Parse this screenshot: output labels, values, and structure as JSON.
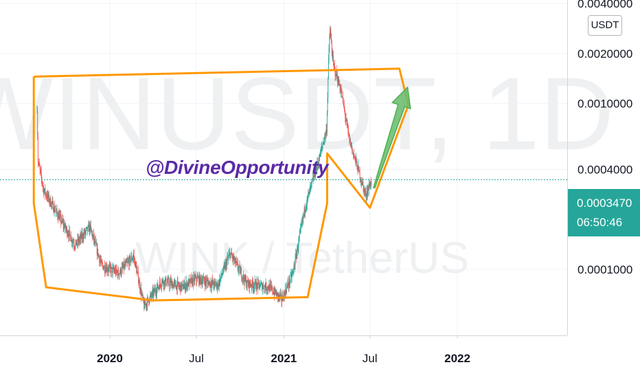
{
  "chart_data": {
    "type": "candlestick",
    "symbol_watermark": "WINUSDT, 1D",
    "pair_watermark": "WINK / TetherUS",
    "author_handle": "@DivineOpportunity",
    "y_scale": "log",
    "y_unit": "USDT",
    "y_range": [
      4e-05,
      0.0042
    ],
    "y_ticks": [
      {
        "label": "0.0040000",
        "value": 0.004
      },
      {
        "label": "0.0020000",
        "value": 0.002
      },
      {
        "label": "0.0010000",
        "value": 0.001
      },
      {
        "label": "0.0004000",
        "value": 0.0004
      },
      {
        "label": "0.0001000",
        "value": 0.0001
      }
    ],
    "x_ticks": [
      {
        "label": "2020",
        "date": "2020-01-01",
        "bold": true
      },
      {
        "label": "Jul",
        "date": "2020-07-01",
        "bold": false
      },
      {
        "label": "2021",
        "date": "2021-01-01",
        "bold": true
      },
      {
        "label": "Jul",
        "date": "2021-07-01",
        "bold": false
      },
      {
        "label": "2022",
        "date": "2022-01-01",
        "bold": true
      }
    ],
    "x_range": [
      "2019-05-15",
      "2022-08-20"
    ],
    "last_price": "0.0003470",
    "countdown": "06:50:46",
    "price_path": [
      {
        "date": "2019-08-01",
        "price": 0.00095
      },
      {
        "date": "2019-08-03",
        "price": 0.00045
      },
      {
        "date": "2019-08-15",
        "price": 0.0003
      },
      {
        "date": "2019-09-15",
        "price": 0.00021
      },
      {
        "date": "2019-10-20",
        "price": 0.00014
      },
      {
        "date": "2019-11-20",
        "price": 0.00018
      },
      {
        "date": "2019-12-15",
        "price": 0.000105
      },
      {
        "date": "2020-01-20",
        "price": 9.5e-05
      },
      {
        "date": "2020-02-20",
        "price": 0.00012
      },
      {
        "date": "2020-03-13",
        "price": 6e-05
      },
      {
        "date": "2020-04-20",
        "price": 8.5e-05
      },
      {
        "date": "2020-06-01",
        "price": 7.8e-05
      },
      {
        "date": "2020-07-01",
        "price": 8.8e-05
      },
      {
        "date": "2020-08-15",
        "price": 8e-05
      },
      {
        "date": "2020-09-10",
        "price": 0.000125
      },
      {
        "date": "2020-10-15",
        "price": 8.2e-05
      },
      {
        "date": "2020-12-01",
        "price": 7.8e-05
      },
      {
        "date": "2020-12-28",
        "price": 6.6e-05
      },
      {
        "date": "2021-01-20",
        "price": 9.5e-05
      },
      {
        "date": "2021-02-15",
        "price": 0.00024
      },
      {
        "date": "2021-03-15",
        "price": 0.00045
      },
      {
        "date": "2021-04-01",
        "price": 0.0007
      },
      {
        "date": "2021-04-05",
        "price": 0.0018
      },
      {
        "date": "2021-04-08",
        "price": 0.0028
      },
      {
        "date": "2021-04-15",
        "price": 0.0017
      },
      {
        "date": "2021-05-01",
        "price": 0.0012
      },
      {
        "date": "2021-05-19",
        "price": 0.0006
      },
      {
        "date": "2021-06-01",
        "price": 0.00045
      },
      {
        "date": "2021-06-22",
        "price": 0.00028
      },
      {
        "date": "2021-07-05",
        "price": 0.000347
      }
    ],
    "annotations": {
      "color": "#ff9800",
      "arrow_color": "#66bb6a",
      "box_polygon": [
        {
          "date": "2019-07-25",
          "price": 0.00145
        },
        {
          "date": "2021-09-01",
          "price": 0.00162
        },
        {
          "date": "2021-09-20",
          "price": 0.00098
        },
        {
          "date": "2021-07-01",
          "price": 0.000235
        },
        {
          "date": "2021-04-02",
          "price": 0.0005
        },
        {
          "date": "2021-04-02",
          "price": 0.00025
        },
        {
          "date": "2021-02-20",
          "price": 6.8e-05
        },
        {
          "date": "2020-04-01",
          "price": 6.5e-05
        },
        {
          "date": "2019-08-20",
          "price": 7.8e-05
        },
        {
          "date": "2019-07-25",
          "price": 0.00025
        },
        {
          "date": "2019-07-25",
          "price": 0.00145
        }
      ],
      "up_arrow": {
        "from": {
          "date": "2021-07-10",
          "price": 0.00031
        },
        "to": {
          "date": "2021-09-18",
          "price": 0.00125
        }
      }
    }
  }
}
